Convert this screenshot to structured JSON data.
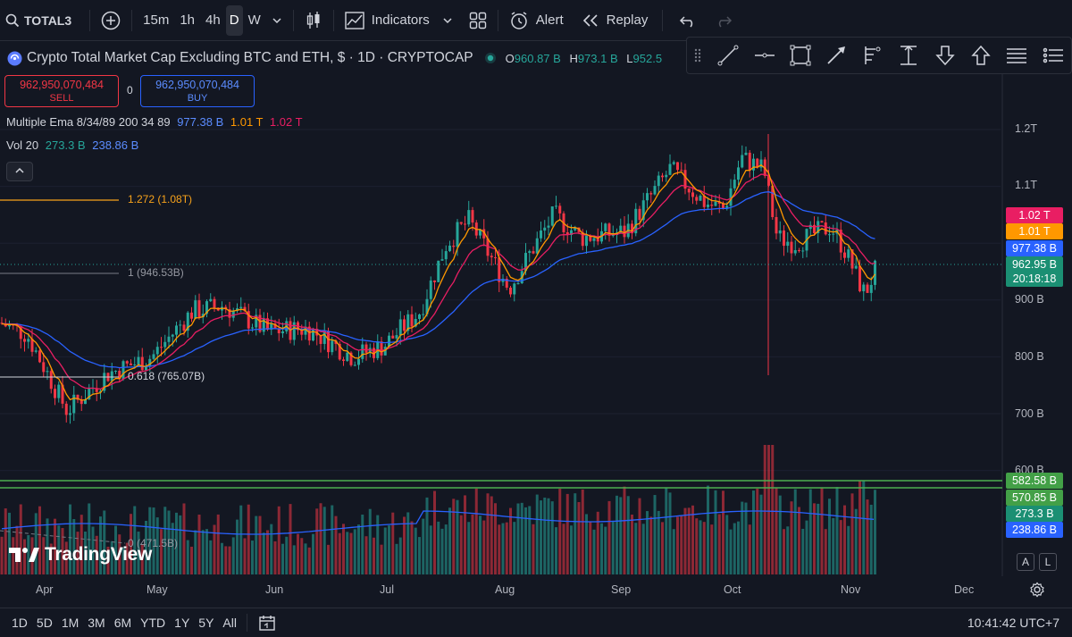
{
  "toolbar": {
    "symbol": "TOTAL3",
    "intervals": [
      "15m",
      "1h",
      "4h",
      "D",
      "W"
    ],
    "active_interval": "D",
    "indicators_label": "Indicators",
    "alert_label": "Alert",
    "replay_label": "Replay"
  },
  "legend": {
    "title": "Crypto Total Market Cap Excluding BTC and ETH, $ · 1D · CRYPTOCAP",
    "open_key": "O",
    "open": "960.87 B",
    "high_key": "H",
    "high": "973.1 B",
    "low_key": "L",
    "low": "952.5"
  },
  "trade": {
    "sell_price": "962,950,070,484",
    "sell_label": "SELL",
    "spread": "0",
    "buy_price": "962,950,070,484",
    "buy_label": "BUY"
  },
  "indicators": {
    "ema_name": "Multiple Ema 8/34/89 200 34 89",
    "ema_v1": "977.38 B",
    "ema_v2": "1.01 T",
    "ema_v3": "1.02 T",
    "vol_name": "Vol 20",
    "vol_v1": "273.3 B",
    "vol_v2": "238.86 B",
    "collapse_icon": "chevron-up"
  },
  "fib": {
    "l1272": "1.272 (1.08T)",
    "l1": "1 (946.53B)",
    "l0618": "0.618 (765.07B)",
    "l0": "0 (471.5B)"
  },
  "price_axis": [
    "1.2T",
    "1.1T",
    "900 B",
    "800 B",
    "700 B",
    "600 B"
  ],
  "price_labels": {
    "ema_slow": "1.02 T",
    "ema_mid": "1.01 T",
    "ema_fast": "977.38 B",
    "last_price": "962.95 B",
    "countdown": "20:18:18",
    "vol_level_1": "582.58 B",
    "vol_level_2": "570.85 B",
    "vol_now": "273.3 B",
    "vol_ma": "238.86 B"
  },
  "time_axis": [
    "Apr",
    "May",
    "Jun",
    "Jul",
    "Aug",
    "Sep",
    "Oct",
    "Nov",
    "Dec"
  ],
  "watermark": "TradingView",
  "scale_buttons": [
    "A",
    "L"
  ],
  "bottom": {
    "ranges": [
      "1D",
      "5D",
      "1M",
      "3M",
      "6M",
      "YTD",
      "1Y",
      "5Y",
      "All"
    ],
    "clock": "10:41:42 UTC+7"
  },
  "colors": {
    "up": "#26a69a",
    "down": "#f23645",
    "ema_fast": "#2962ff",
    "ema_mid": "#ff9800",
    "ema_slow": "#e91e63",
    "vol_ma": "#2962ff",
    "hline": "#4caf50",
    "fib_orange": "#f7a21b"
  },
  "chart_data": {
    "type": "candlestick",
    "series": [
      {
        "name": "Multiple Ema 8/34/89",
        "last": [
          977.38,
          1010,
          1020
        ]
      },
      {
        "name": "Vol 20",
        "last": [
          273.3,
          238.86
        ]
      }
    ],
    "ylim": [
      650,
      1250
    ]
  }
}
